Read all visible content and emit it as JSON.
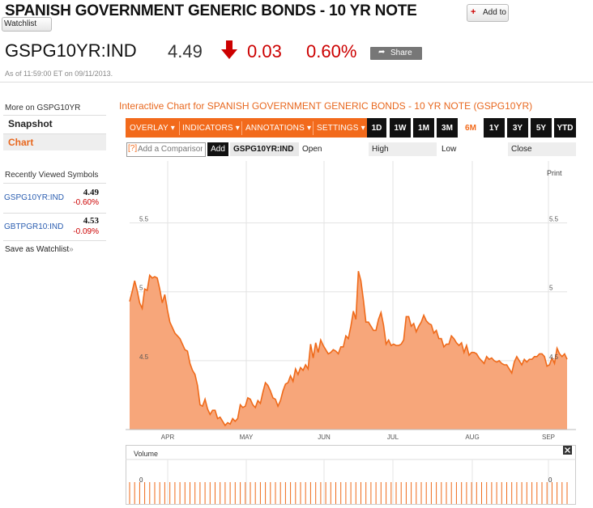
{
  "header": {
    "title": "SPANISH GOVERNMENT GENERIC BONDS - 10 YR NOTE",
    "add_to_label": "Add to",
    "watchlist_label": "Watchlist",
    "ticker": "GSPG10YR:IND",
    "price": "4.49",
    "change": "0.03",
    "change_pct": "0.60%",
    "share_label": "Share",
    "as_of": "As of 11:59:00 ET on 09/11/2013."
  },
  "sidebar": {
    "more_on": "More on GSPG10YR",
    "items": [
      {
        "label": "Snapshot"
      },
      {
        "label": "Chart"
      }
    ],
    "recent_title": "Recently Viewed Symbols",
    "recent": [
      {
        "symbol": "GSPG10YR:IND",
        "price": "4.49",
        "change": "-0.60%"
      },
      {
        "symbol": "GBTPGR10:IND",
        "price": "4.53",
        "change": "-0.09%"
      }
    ],
    "save_watchlist": "Save as Watchlist",
    "save_arrow": "»"
  },
  "chart_section": {
    "title": "Interactive Chart for SPANISH GOVERNMENT GENERIC BONDS - 10 YR NOTE (GSPG10YR)",
    "menus": [
      "OVERLAY",
      "INDICATORS",
      "ANNOTATIONS",
      "SETTINGS"
    ],
    "ranges": [
      "1D",
      "1W",
      "1M",
      "3M",
      "6M",
      "1Y",
      "3Y",
      "5Y",
      "YTD"
    ],
    "active_range": "6M",
    "compare_icon": "[?]",
    "compare_placeholder": "Add a Comparison",
    "add_label": "Add",
    "symbol": "GSPG10YR:IND",
    "ohlc_labels": [
      "Open",
      "High",
      "Low",
      "Close"
    ],
    "print_label": "Print",
    "volume_label": "Volume",
    "close_icon": "close-icon",
    "accent_color": "#f26a1b",
    "down_color": "#cc0000"
  },
  "chart_data": {
    "type": "area",
    "x_labels": [
      "APR",
      "MAY",
      "JUN",
      "JUL",
      "AUG",
      "SEP"
    ],
    "y_ticks": [
      4.5,
      5,
      5.5
    ],
    "ylim": [
      4,
      5.95
    ],
    "grid": true,
    "fill_color": "#f7a67a",
    "line_color": "#ef6a1a",
    "values": [
      4.93,
      5.0,
      5.08,
      5.01,
      4.92,
      4.88,
      5.02,
      5.01,
      5.12,
      5.1,
      5.11,
      5.1,
      5.02,
      4.92,
      4.98,
      4.87,
      4.78,
      4.74,
      4.7,
      4.68,
      4.66,
      4.62,
      4.58,
      4.57,
      4.48,
      4.43,
      4.4,
      4.32,
      4.18,
      4.17,
      4.22,
      4.15,
      4.11,
      4.14,
      4.14,
      4.08,
      4.09,
      4.06,
      4.03,
      4.05,
      4.04,
      4.08,
      4.06,
      4.08,
      4.18,
      4.16,
      4.17,
      4.23,
      4.22,
      4.18,
      4.16,
      4.21,
      4.19,
      4.27,
      4.34,
      4.32,
      4.28,
      4.23,
      4.22,
      4.17,
      4.21,
      4.28,
      4.33,
      4.34,
      4.39,
      4.35,
      4.44,
      4.4,
      4.45,
      4.43,
      4.47,
      4.44,
      4.62,
      4.52,
      4.63,
      4.56,
      4.65,
      4.61,
      4.58,
      4.55,
      4.56,
      4.58,
      4.57,
      4.55,
      4.6,
      4.6,
      4.68,
      4.66,
      4.75,
      4.86,
      4.8,
      5.15,
      5.08,
      4.94,
      4.78,
      4.78,
      4.75,
      4.72,
      4.72,
      4.8,
      4.85,
      4.76,
      4.62,
      4.65,
      4.61,
      4.62,
      4.61,
      4.61,
      4.62,
      4.65,
      4.82,
      4.82,
      4.75,
      4.77,
      4.71,
      4.75,
      4.78,
      4.83,
      4.79,
      4.77,
      4.76,
      4.7,
      4.72,
      4.66,
      4.66,
      4.6,
      4.62,
      4.62,
      4.68,
      4.66,
      4.63,
      4.61,
      4.63,
      4.56,
      4.61,
      4.54,
      4.56,
      4.56,
      4.55,
      4.52,
      4.5,
      4.48,
      4.53,
      4.51,
      4.52,
      4.5,
      4.49,
      4.5,
      4.48,
      4.47,
      4.47,
      4.44,
      4.41,
      4.49,
      4.53,
      4.5,
      4.47,
      4.51,
      4.49,
      4.51,
      4.51,
      4.53,
      4.53,
      4.55,
      4.55,
      4.53,
      4.46,
      4.47,
      4.52,
      4.48,
      4.59,
      4.55,
      4.53,
      4.55,
      4.51
    ],
    "volume_values": [
      0
    ],
    "volume_ylabel": "0"
  }
}
